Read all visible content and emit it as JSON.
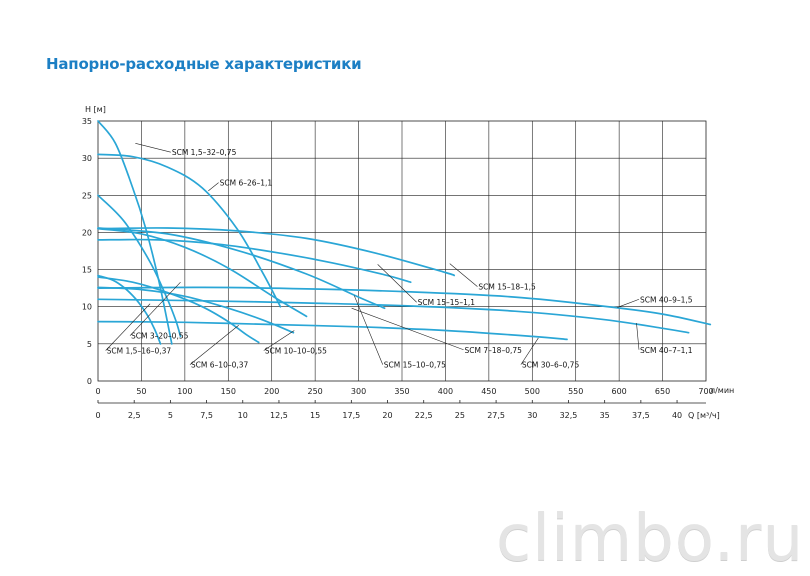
{
  "title": "Напорно-расходные характеристики",
  "watermark": "climbo.ru",
  "chart_data": {
    "type": "line",
    "ylabel": "H [м]",
    "xlabel": "л/мин",
    "x2label": "Q [м³/ч]",
    "xlim": [
      0,
      700
    ],
    "ylim": [
      0,
      35
    ],
    "grid": true,
    "x_ticks": [
      "0",
      "50",
      "100",
      "150",
      "200",
      "250",
      "300",
      "350",
      "400",
      "450",
      "500",
      "550",
      "600",
      "650",
      "700"
    ],
    "x2_ticks": [
      "0",
      "2,5",
      "5",
      "7,5",
      "10",
      "12,5",
      "15",
      "17,5",
      "20",
      "22,5",
      "25",
      "27,5",
      "30",
      "32,5",
      "35",
      "37,5",
      "40"
    ],
    "y_ticks": [
      "0",
      "5",
      "10",
      "15",
      "20",
      "25",
      "30",
      "35"
    ],
    "line_color": "#2aa6d6",
    "series": [
      {
        "name": "SCM 1,5–32–0,75",
        "x": [
          0,
          20,
          40,
          55,
          70,
          85
        ],
        "y": [
          35,
          32,
          26,
          20.5,
          13.5,
          5
        ],
        "label_xy": [
          85,
          30.4
        ],
        "anchor": [
          43,
          32
        ]
      },
      {
        "name": "SCM 6–26–1,1",
        "x": [
          0,
          40,
          80,
          120,
          160,
          190,
          210
        ],
        "y": [
          30.5,
          30.2,
          28.8,
          26,
          20.5,
          14.5,
          10
        ],
        "label_xy": [
          140,
          26.3
        ],
        "anchor": [
          127,
          25.6
        ]
      },
      {
        "name": "SCM 1,5–16–0,37",
        "x": [
          0,
          20,
          40,
          55,
          65,
          72
        ],
        "y": [
          14.2,
          13.4,
          11.5,
          9.2,
          7,
          5
        ],
        "label_xy": [
          10,
          3.7
        ],
        "anchor": [
          60,
          10.4
        ]
      },
      {
        "name": "SCM 3–20–0,55",
        "x": [
          0,
          30,
          60,
          80,
          90,
          95
        ],
        "y": [
          25,
          21.5,
          16,
          11,
          8,
          6
        ],
        "label_xy": [
          38,
          5.7
        ],
        "anchor": [
          95,
          13.3
        ]
      },
      {
        "name": "SCM 6–10–0,37",
        "x": [
          0,
          40,
          80,
          120,
          150,
          170,
          185
        ],
        "y": [
          14,
          13.3,
          11.9,
          10,
          8,
          6.3,
          5.2
        ],
        "label_xy": [
          107,
          1.8
        ],
        "anchor": [
          162,
          7.5
        ]
      },
      {
        "name": "SCM 10–10–0,55",
        "x": [
          0,
          50,
          100,
          150,
          190,
          225
        ],
        "y": [
          12.6,
          12.3,
          11.4,
          9.8,
          8.2,
          6.5
        ],
        "label_xy": [
          192,
          3.7
        ],
        "anchor": [
          226,
          6.8
        ]
      },
      {
        "name": "SCM 15–18–1,5",
        "x": [
          0,
          80,
          160,
          240,
          320,
          400,
          410
        ],
        "y": [
          20.5,
          20.6,
          20.2,
          19.2,
          17.2,
          14.6,
          14.2
        ],
        "label_xy": [
          438,
          12.3
        ],
        "anchor": [
          405,
          15.8
        ]
      },
      {
        "name": "SCM 15–15–1,1",
        "x": [
          0,
          70,
          140,
          210,
          270,
          330,
          360
        ],
        "y": [
          19,
          19,
          18.4,
          17.2,
          15.9,
          14.3,
          13.3
        ],
        "label_xy": [
          368,
          10.2
        ],
        "anchor": [
          322,
          15.7
        ]
      },
      {
        "name": "SCM 15–10–0,75",
        "x": [
          0,
          80,
          160,
          240,
          300,
          330
        ],
        "y": [
          20.6,
          19.8,
          17.6,
          14.4,
          11.3,
          9.8
        ],
        "label_xy": [
          329,
          1.8
        ],
        "anchor": [
          295,
          11.5
        ]
      },
      {
        "name": "SCM 7–18–0,75",
        "x": [
          0,
          50,
          100,
          150,
          200,
          240
        ],
        "y": [
          20.5,
          19.8,
          18,
          15.2,
          11.5,
          8.7
        ],
        "label_xy": [
          422,
          3.8
        ],
        "anchor": [
          292,
          9.8
        ]
      },
      {
        "name": "SCM 30–6–0,75",
        "x": [
          0,
          100,
          200,
          300,
          400,
          500,
          540
        ],
        "y": [
          8,
          7.9,
          7.6,
          7.3,
          6.8,
          6,
          5.6
        ],
        "label_xy": [
          488,
          1.8
        ],
        "anchor": [
          507,
          5.8
        ]
      },
      {
        "name": "SCM 40–9–1,5",
        "x": [
          0,
          120,
          240,
          360,
          480,
          580,
          650,
          705
        ],
        "y": [
          12.5,
          12.6,
          12.4,
          12,
          11.3,
          10.1,
          9,
          7.6
        ],
        "label_xy": [
          624,
          10.6
        ],
        "anchor": [
          598,
          9.9
        ]
      },
      {
        "name": "SCM 40–7–1,1",
        "x": [
          0,
          120,
          240,
          360,
          480,
          580,
          650,
          680
        ],
        "y": [
          11,
          10.8,
          10.5,
          10.1,
          9.4,
          8.3,
          7.1,
          6.5
        ],
        "label_xy": [
          624,
          3.8
        ],
        "anchor": [
          620,
          7.8
        ]
      }
    ]
  }
}
